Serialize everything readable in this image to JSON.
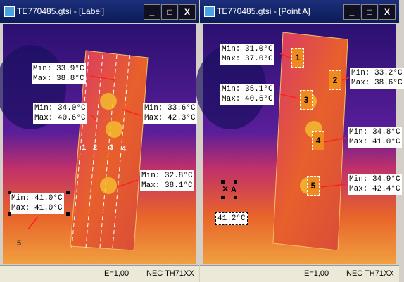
{
  "windows": [
    {
      "title": "TE770485.gtsi - [Label]",
      "labels": [
        {
          "min": "Min: 33.9°C",
          "max": "Max: 38.8°C"
        },
        {
          "min": "Min: 34.0°C",
          "max": "Max: 40.6°C"
        },
        {
          "min": "Min: 33.6°C",
          "max": "Max: 42.3°C"
        },
        {
          "min": "Min: 32.8°C",
          "max": "Max: 38.1°C"
        },
        {
          "min": "Min: 41.0°C",
          "max": "Max: 41.0°C"
        }
      ],
      "markers": [
        "1",
        "2",
        "3",
        "4",
        "5"
      ],
      "status": {
        "emissivity": "E=1,00",
        "camera": "NEC TH71XX"
      }
    },
    {
      "title": "TE770485.gtsi - [Point A]",
      "labels": [
        {
          "min": "Min: 31.0°C",
          "max": "Max: 37.0°C"
        },
        {
          "min": "Min: 33.2°C",
          "max": "Max: 38.6°C"
        },
        {
          "min": "Min: 35.1°C",
          "max": "Max: 40.6°C"
        },
        {
          "min": "Min: 34.8°C",
          "max": "Max: 41.0°C"
        },
        {
          "min": "Min: 34.9°C",
          "max": "Max: 42.4°C"
        }
      ],
      "markers": [
        "1",
        "2",
        "3",
        "4",
        "5"
      ],
      "point": {
        "name": "A",
        "temp": "41.2°C"
      },
      "status": {
        "emissivity": "E=1,00",
        "camera": "NEC TH71XX"
      }
    }
  ]
}
